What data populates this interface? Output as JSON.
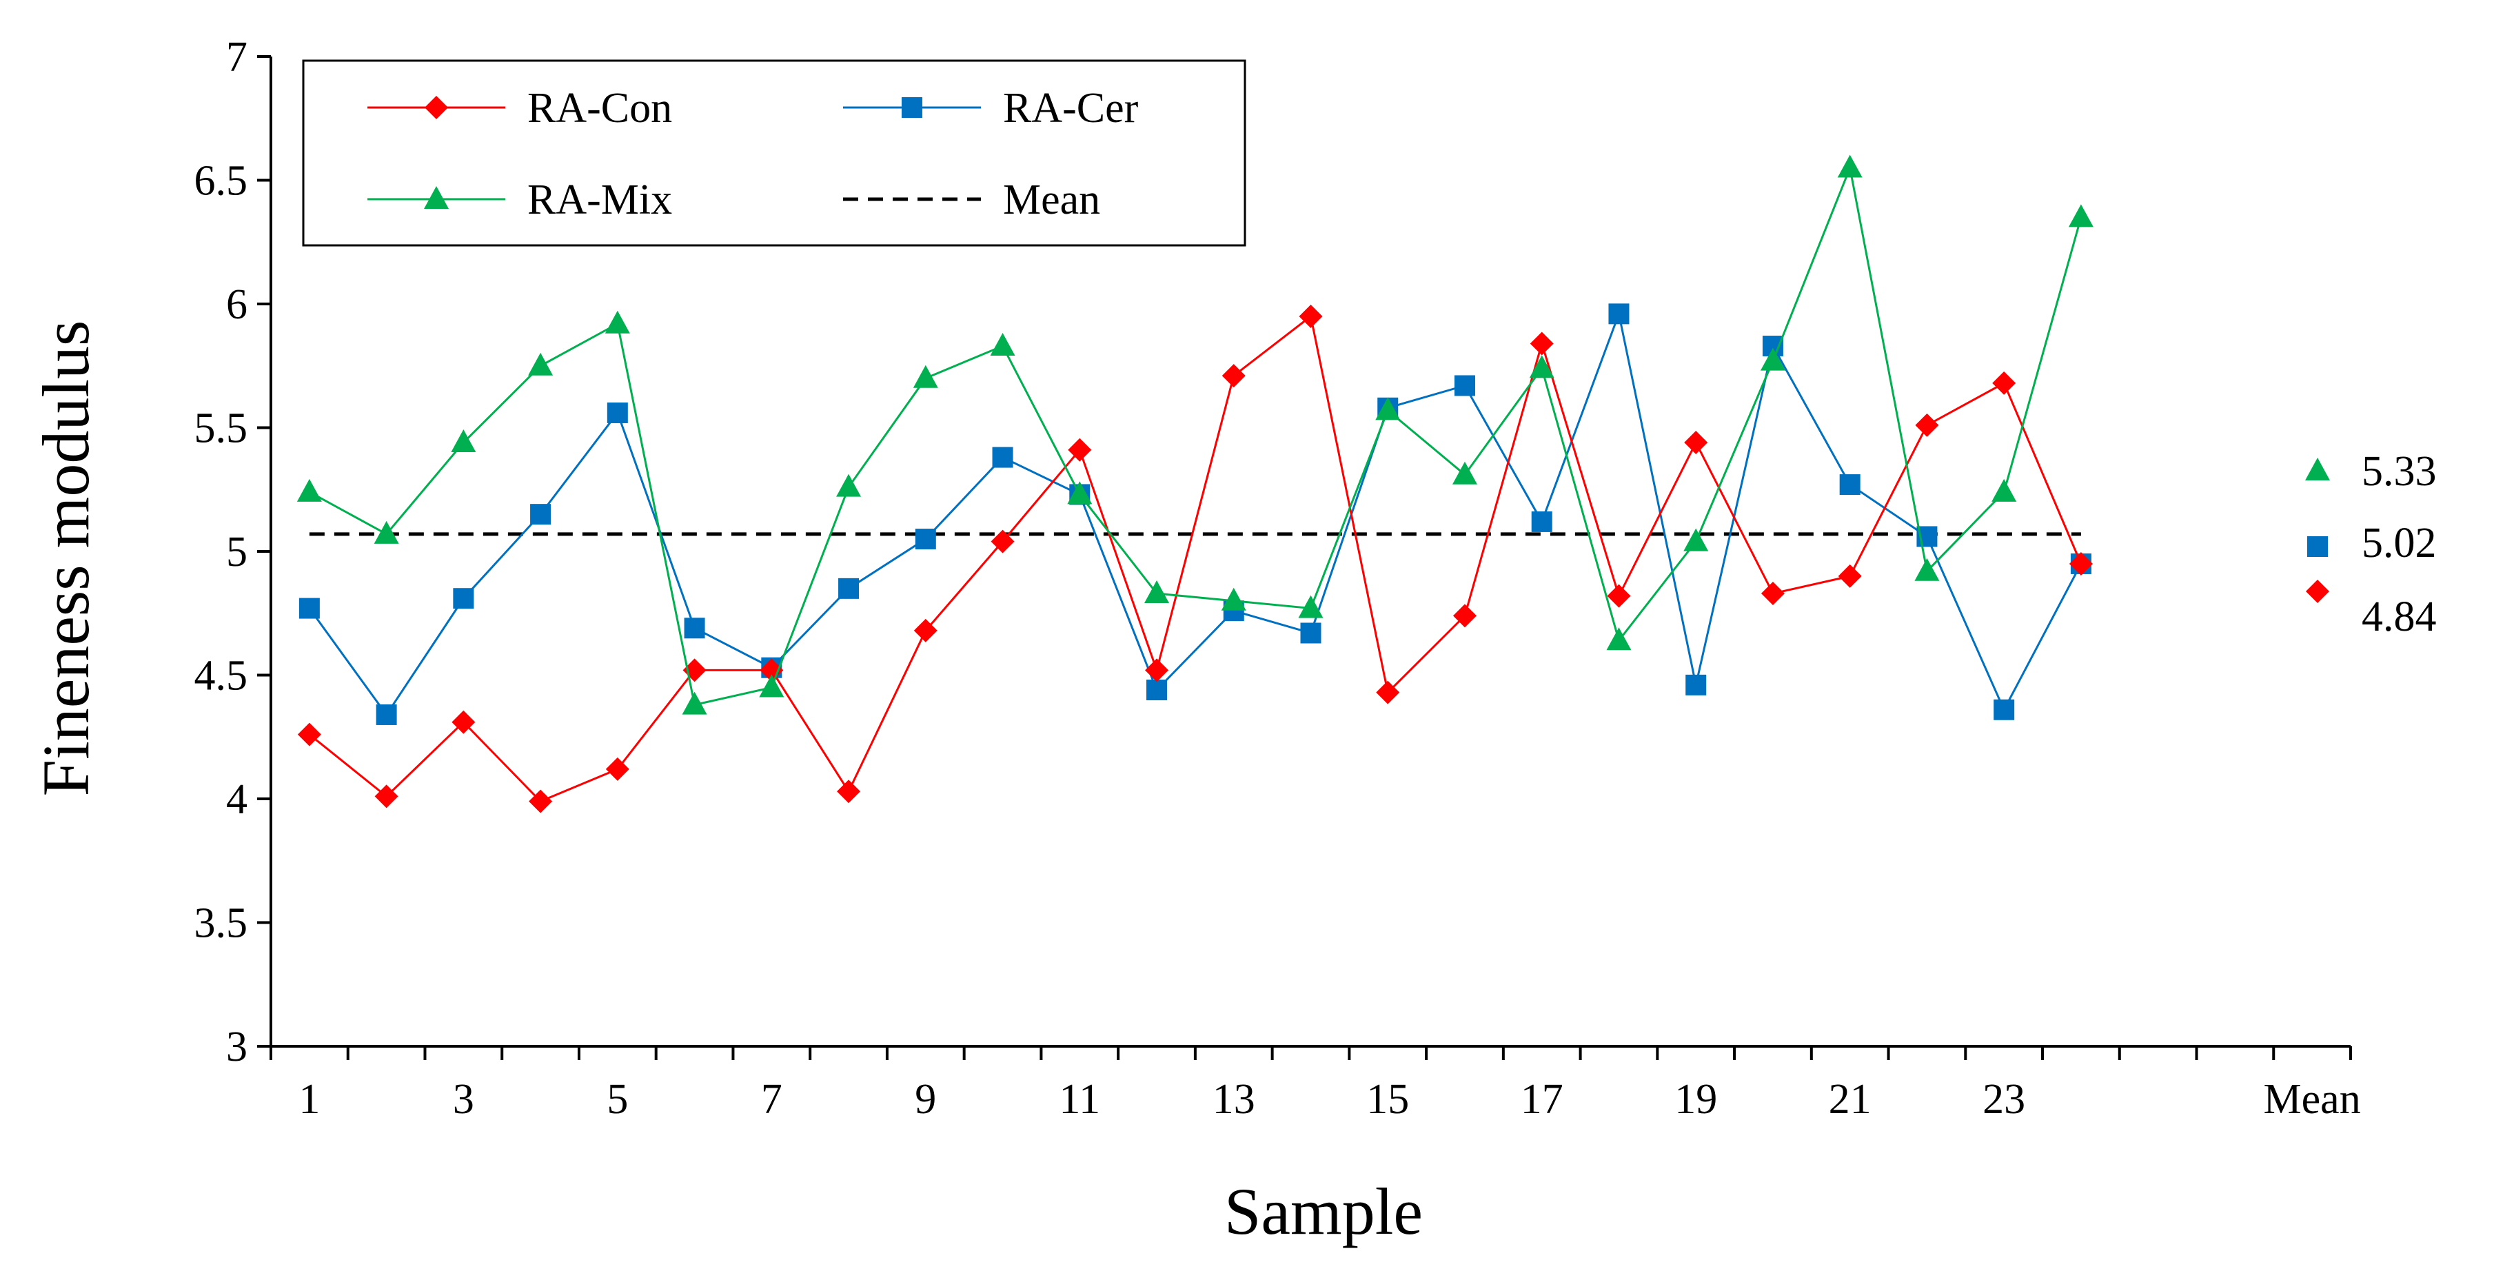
{
  "chart_data": {
    "type": "line",
    "title": "",
    "xlabel": "Sample",
    "ylabel": "Fineness modulus",
    "ylim": [
      3,
      7
    ],
    "yticks": [
      "3",
      "3.5",
      "4",
      "4.5",
      "5",
      "5.5",
      "6",
      "6.5",
      "7"
    ],
    "xticks": [
      "1",
      "3",
      "5",
      "7",
      "9",
      "11",
      "13",
      "15",
      "17",
      "19",
      "21",
      "23",
      "Mean"
    ],
    "x": [
      1,
      2,
      3,
      4,
      5,
      6,
      7,
      8,
      9,
      10,
      11,
      12,
      13,
      14,
      15,
      16,
      17,
      18,
      19,
      20,
      21,
      22,
      23,
      24
    ],
    "grid": false,
    "legend_position": "top-left",
    "series": [
      {
        "name": "RA-Con",
        "color": "#ff0000",
        "marker": "diamond",
        "values": [
          4.26,
          4.01,
          4.31,
          3.99,
          4.12,
          4.52,
          4.52,
          4.03,
          4.68,
          5.04,
          5.41,
          4.52,
          5.71,
          5.95,
          4.43,
          4.74,
          5.84,
          4.82,
          5.44,
          4.83,
          4.9,
          5.51,
          5.68,
          4.95
        ],
        "mean": 4.84,
        "mean_label": "4.84"
      },
      {
        "name": "RA-Cer",
        "color": "#0070c0",
        "marker": "square",
        "values": [
          4.77,
          4.34,
          4.81,
          5.15,
          5.56,
          4.69,
          4.53,
          4.85,
          5.05,
          5.38,
          5.23,
          4.44,
          4.76,
          4.67,
          5.58,
          5.67,
          5.12,
          5.96,
          4.46,
          5.83,
          5.27,
          5.06,
          4.36,
          4.95
        ],
        "mean": 5.02,
        "mean_label": "5.02"
      },
      {
        "name": "RA-Mix",
        "color": "#00b050",
        "marker": "triangle",
        "values": [
          5.24,
          5.07,
          5.44,
          5.75,
          5.92,
          4.38,
          4.45,
          5.26,
          5.7,
          5.83,
          5.23,
          4.83,
          4.8,
          4.77,
          5.57,
          5.31,
          5.74,
          4.64,
          5.04,
          5.77,
          6.55,
          4.92,
          5.24,
          6.35
        ],
        "mean": 5.33,
        "mean_label": "5.33"
      }
    ],
    "overall_mean": {
      "name": "Mean",
      "value": 5.07,
      "style": "dashed",
      "color": "#000000"
    }
  }
}
